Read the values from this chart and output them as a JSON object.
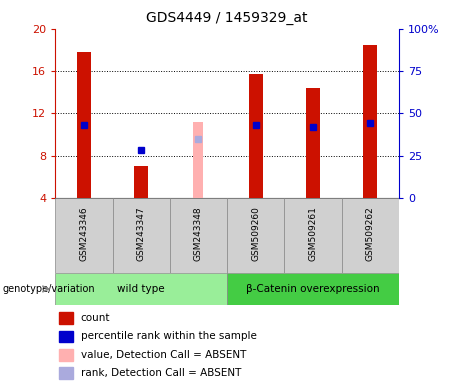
{
  "title": "GDS4449 / 1459329_at",
  "samples": [
    "GSM243346",
    "GSM243347",
    "GSM243348",
    "GSM509260",
    "GSM509261",
    "GSM509262"
  ],
  "count_values": [
    17.8,
    7.0,
    null,
    15.7,
    14.4,
    18.5
  ],
  "count_absent_values": [
    null,
    null,
    11.2,
    null,
    null,
    null
  ],
  "percentile_values": [
    43,
    28,
    null,
    43,
    42,
    44
  ],
  "percentile_absent_values": [
    null,
    null,
    35,
    null,
    null,
    null
  ],
  "ylim_left": [
    4,
    20
  ],
  "ylim_right": [
    0,
    100
  ],
  "yticks_left": [
    4,
    8,
    12,
    16,
    20
  ],
  "yticks_right": [
    0,
    25,
    50,
    75,
    100
  ],
  "ytick_labels_right": [
    "0",
    "25",
    "50",
    "75",
    "100%"
  ],
  "bar_color": "#cc1100",
  "bar_absent_color": "#ffb0b0",
  "percentile_color": "#0000cc",
  "percentile_absent_color": "#aaaadd",
  "groups": [
    {
      "label": "wild type",
      "samples": [
        0,
        1,
        2
      ],
      "color": "#99ee99"
    },
    {
      "label": "β-Catenin overexpression",
      "samples": [
        3,
        4,
        5
      ],
      "color": "#44cc44"
    }
  ],
  "genotype_label": "genotype/variation",
  "legend_items": [
    {
      "label": "count",
      "color": "#cc1100"
    },
    {
      "label": "percentile rank within the sample",
      "color": "#0000cc"
    },
    {
      "label": "value, Detection Call = ABSENT",
      "color": "#ffb0b0"
    },
    {
      "label": "rank, Detection Call = ABSENT",
      "color": "#aaaadd"
    }
  ],
  "bar_width": 0.25,
  "title_fontsize": 10,
  "tick_fontsize": 8,
  "label_fontsize": 7
}
